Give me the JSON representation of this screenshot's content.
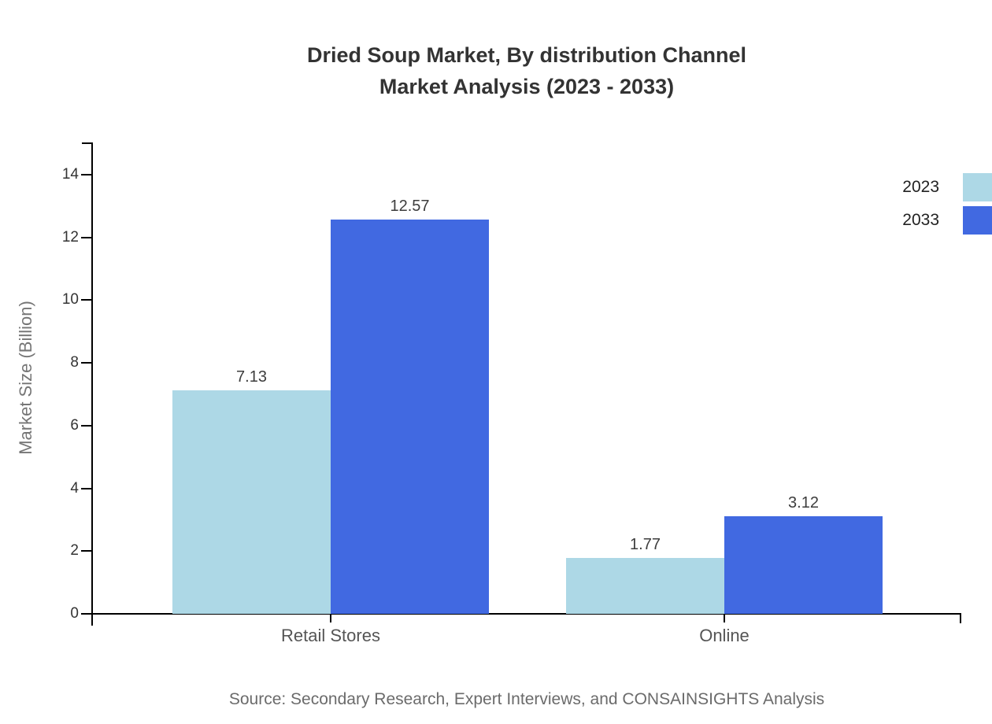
{
  "title": {
    "line1": "Dried Soup Market, By distribution Channel",
    "line2": "Market Analysis (2023 - 2033)"
  },
  "source_note": "Source: Secondary Research, Expert Interviews, and CONSAINSIGHTS Analysis",
  "colors": {
    "series_2023": "#ADD8E6",
    "series_2033": "#4169E1",
    "axis": "#000000",
    "title_text": "#333333",
    "tick_text": "#333333",
    "category_text": "#555555",
    "muted_text": "#6b6b6b"
  },
  "legend": {
    "items": [
      {
        "label": "2023",
        "color": "#ADD8E6"
      },
      {
        "label": "2033",
        "color": "#4169E1"
      }
    ]
  },
  "chart_data": {
    "type": "bar",
    "title": "Dried Soup Market, By distribution Channel Market Analysis (2023 - 2033)",
    "categories": [
      "Retail Stores",
      "Online"
    ],
    "series": [
      {
        "name": "2023",
        "color": "#ADD8E6",
        "values": [
          7.13,
          1.77
        ]
      },
      {
        "name": "2033",
        "color": "#4169E1",
        "values": [
          12.57,
          3.12
        ]
      }
    ],
    "value_labels": [
      [
        "7.13",
        "1.77"
      ],
      [
        "12.57",
        "3.12"
      ]
    ],
    "xlabel": "",
    "ylabel": "Market Size (Billion)",
    "ylim": [
      0,
      15
    ],
    "yticks": [
      0,
      2,
      4,
      6,
      8,
      10,
      12,
      14
    ],
    "grid": false,
    "legend_position": "right"
  }
}
